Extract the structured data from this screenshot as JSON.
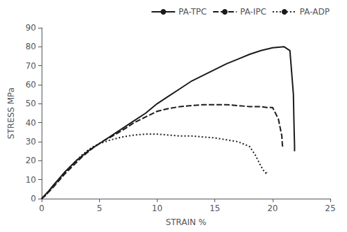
{
  "chart_data": {
    "type": "line",
    "xlabel": "STRAIN %",
    "ylabel": "STRESS MPa",
    "xlim": [
      0,
      25
    ],
    "ylim": [
      0,
      90
    ],
    "xticks": [
      0,
      5,
      10,
      15,
      20,
      25
    ],
    "yticks": [
      0,
      10,
      20,
      30,
      40,
      50,
      60,
      70,
      80,
      90
    ],
    "grid": false,
    "legend": "upper right",
    "series": [
      {
        "name": "PA-TPC",
        "color": "#1a1a1a",
        "line_style": "solid",
        "x": [
          0,
          0.3,
          0.6,
          1.0,
          1.5,
          2.0,
          2.5,
          3.0,
          3.5,
          4.0,
          4.5,
          5.0,
          5.5,
          6.0,
          7.0,
          8.0,
          9.0,
          10.0,
          11.0,
          12.0,
          13.0,
          14.0,
          15.0,
          16.0,
          17.0,
          18.0,
          19.0,
          20.0,
          21.0,
          21.5,
          21.8,
          21.85,
          21.9,
          21.9
        ],
        "values": [
          0,
          2,
          4,
          7,
          10.5,
          14,
          17,
          20,
          22.5,
          25,
          27,
          29,
          31,
          33,
          37,
          41,
          45,
          50,
          54,
          58,
          62,
          65,
          68,
          71,
          73.5,
          76,
          78,
          79.5,
          80,
          78,
          55,
          40,
          28,
          25
        ]
      },
      {
        "name": "PA-IPC",
        "color": "#1a1a1a",
        "line_style": "dashed",
        "x": [
          0,
          0.3,
          0.6,
          1.0,
          1.5,
          2.0,
          2.5,
          3.0,
          3.5,
          4.0,
          4.5,
          5.0,
          5.5,
          6.0,
          7.0,
          8.0,
          9.0,
          10.0,
          11.0,
          12.0,
          13.0,
          14.0,
          15.0,
          16.0,
          17.0,
          18.0,
          19.0,
          19.5,
          20.0,
          20.5,
          20.8,
          20.85,
          20.9,
          20.9
        ],
        "values": [
          0,
          1.5,
          3.5,
          6,
          9.5,
          13,
          16,
          19,
          22,
          24.5,
          27,
          29,
          31,
          32.5,
          36,
          40,
          43,
          46,
          47.5,
          48.5,
          49,
          49.5,
          49.5,
          49.5,
          49,
          48.5,
          48.5,
          48,
          48,
          42,
          33,
          28,
          27,
          27
        ]
      },
      {
        "name": "PA-ADP",
        "color": "#1a1a1a",
        "line_style": "dotted",
        "x": [
          0,
          0.3,
          0.6,
          1.0,
          1.5,
          2.0,
          2.5,
          3.0,
          3.5,
          4.0,
          4.5,
          5.0,
          6.0,
          7.0,
          8.0,
          9.0,
          10.0,
          11.0,
          12.0,
          13.0,
          14.0,
          15.0,
          16.0,
          17.0,
          18.0,
          18.5,
          19.0,
          19.3,
          19.5,
          19.5
        ],
        "values": [
          0,
          1.5,
          3.5,
          6.5,
          10,
          13.5,
          17,
          20,
          23,
          25.5,
          27.5,
          29,
          31,
          32.5,
          33.5,
          34,
          34,
          33.5,
          33,
          33,
          32.5,
          32,
          31,
          30,
          27.5,
          23,
          17,
          14,
          13,
          14
        ]
      }
    ]
  }
}
